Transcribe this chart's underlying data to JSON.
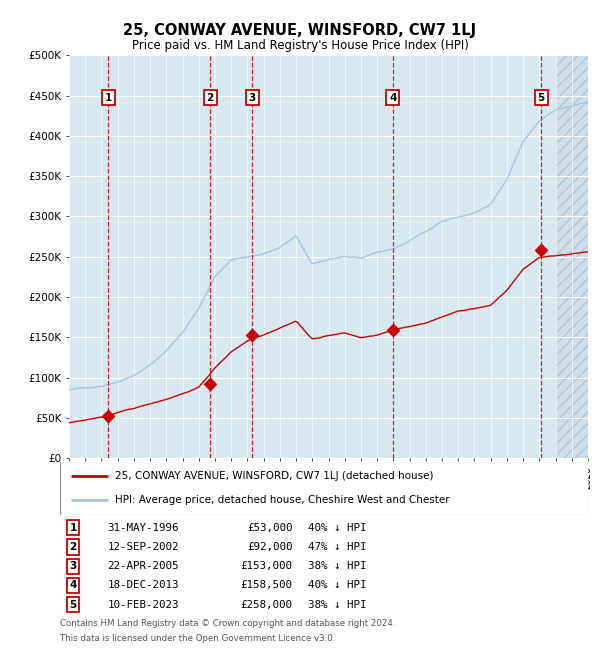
{
  "title": "25, CONWAY AVENUE, WINSFORD, CW7 1LJ",
  "subtitle": "Price paid vs. HM Land Registry's House Price Index (HPI)",
  "footer_line1": "Contains HM Land Registry data © Crown copyright and database right 2024.",
  "footer_line2": "This data is licensed under the Open Government Licence v3.0.",
  "legend_line1": "25, CONWAY AVENUE, WINSFORD, CW7 1LJ (detached house)",
  "legend_line2": "HPI: Average price, detached house, Cheshire West and Chester",
  "transactions": [
    {
      "label": "1",
      "date_str": "31-MAY-1996",
      "year": 1996.41,
      "price": 53000,
      "pct": "40% ↓ HPI"
    },
    {
      "label": "2",
      "date_str": "12-SEP-2002",
      "year": 2002.7,
      "price": 92000,
      "pct": "47% ↓ HPI"
    },
    {
      "label": "3",
      "date_str": "22-APR-2005",
      "year": 2005.3,
      "price": 153000,
      "pct": "38% ↓ HPI"
    },
    {
      "label": "4",
      "date_str": "18-DEC-2013",
      "year": 2013.96,
      "price": 158500,
      "pct": "40% ↓ HPI"
    },
    {
      "label": "5",
      "date_str": "10-FEB-2023",
      "year": 2023.11,
      "price": 258000,
      "pct": "38% ↓ HPI"
    }
  ],
  "hpi_color": "#a8c4e0",
  "price_color": "#cc0000",
  "marker_color": "#cc0000",
  "vline_color": "#cc0000",
  "plot_bg_color": "#d8e8f0",
  "grid_color": "#ffffff",
  "ylim": [
    0,
    500000
  ],
  "ytick_step": 50000,
  "xmin": 1994,
  "xmax": 2026,
  "future_shade_start": 2024.0,
  "hpi_anchors": {
    "1994": 85000,
    "1995": 87000,
    "1996": 90000,
    "1997": 96000,
    "1998": 105000,
    "1999": 118000,
    "2000": 135000,
    "2001": 158000,
    "2002": 188000,
    "2003": 228000,
    "2004": 248000,
    "2005": 252000,
    "2006": 256000,
    "2007": 264000,
    "2008": 278000,
    "2009": 242000,
    "2010": 248000,
    "2011": 252000,
    "2012": 248000,
    "2013": 256000,
    "2014": 260000,
    "2015": 270000,
    "2016": 282000,
    "2017": 295000,
    "2018": 300000,
    "2019": 305000,
    "2020": 315000,
    "2021": 345000,
    "2022": 392000,
    "2023": 418000,
    "2024": 432000,
    "2025": 436000,
    "2026": 440000
  },
  "pp_anchors": {
    "1994": 44000,
    "1995": 47000,
    "1996": 51000,
    "1997": 56000,
    "1998": 61000,
    "1999": 67000,
    "2000": 73000,
    "2001": 80000,
    "2002": 88000,
    "2003": 112000,
    "2004": 132000,
    "2005": 146000,
    "2006": 154000,
    "2007": 163000,
    "2008": 172000,
    "2009": 149000,
    "2010": 154000,
    "2011": 157000,
    "2012": 151000,
    "2013": 154000,
    "2014": 160000,
    "2015": 164000,
    "2016": 169000,
    "2017": 176000,
    "2018": 184000,
    "2019": 187000,
    "2020": 191000,
    "2021": 210000,
    "2022": 236000,
    "2023": 251000,
    "2024": 253000,
    "2025": 256000,
    "2026": 258000
  }
}
